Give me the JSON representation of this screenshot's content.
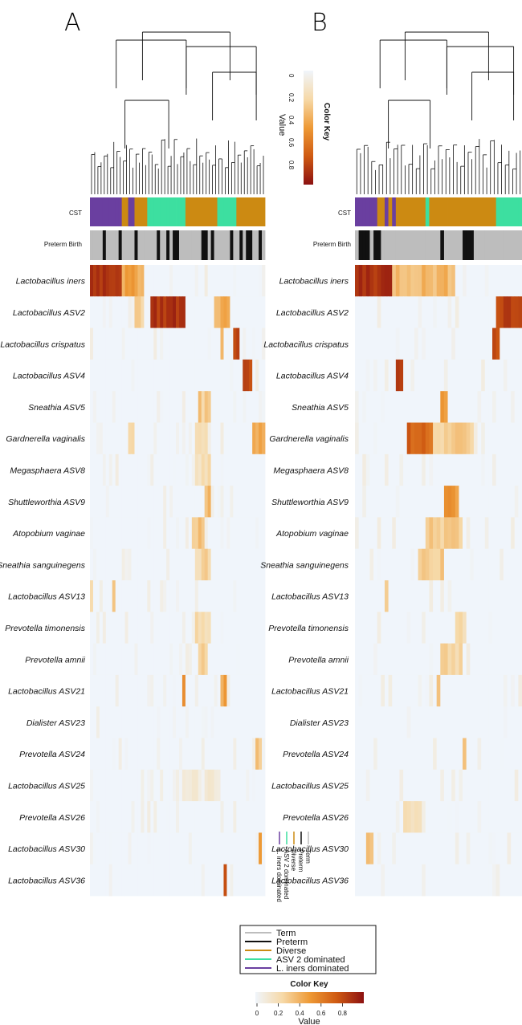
{
  "panels": [
    {
      "letter": "A"
    },
    {
      "letter": "B"
    }
  ],
  "bar_labels": {
    "cst": "CST",
    "preterm": "Preterm Birth"
  },
  "legend": {
    "items": [
      {
        "label": "Term",
        "color": "#bdbdbd"
      },
      {
        "label": "Preterm",
        "color": "#111111"
      },
      {
        "label": "Diverse",
        "color": "#cc8a12"
      },
      {
        "label": "ASV 2 dominated",
        "color": "#3ddfa0"
      },
      {
        "label": "L. iners dominated",
        "color": "#6a3fa0"
      }
    ]
  },
  "mini_legend": {
    "items": [
      "Term",
      "Preterm",
      "Diverse",
      "ASV 2 dominated",
      "L. iners dominated"
    ]
  },
  "color_key": {
    "title": "Color Key",
    "axis_label": "Value",
    "ticks": [
      "0",
      "0.2",
      "0.4",
      "0.6",
      "0.8"
    ],
    "range": [
      0,
      1
    ],
    "low_color": "#f0f5fb",
    "high_color": "#8c1111"
  },
  "chart_data": [
    {
      "type": "heatmap",
      "panel": "A",
      "rows": [
        "Lactobacillus iners",
        "Lactobacillus ASV2",
        "Lactobacillus crispatus",
        "Lactobacillus ASV4",
        "Sneathia ASV5",
        "Gardnerella vaginalis",
        "Megasphaera ASV8",
        "Shuttleworthia ASV9",
        "Atopobium vaginae",
        "Sneathia sanguinegens",
        "Lactobacillus ASV13",
        "Prevotella timonensis",
        "Prevotella amnii",
        "Lactobacillus ASV21",
        "Dialister ASV23",
        "Prevotella ASV24",
        "Lactobacillus ASV25",
        "Prevotella ASV26",
        "Lactobacillus ASV30",
        "Lactobacillus ASV36"
      ],
      "n_samples": 55,
      "cst": [
        "L",
        "L",
        "L",
        "L",
        "L",
        "L",
        "L",
        "L",
        "L",
        "L",
        "D",
        "D",
        "L",
        "L",
        "D",
        "D",
        "D",
        "D",
        "A",
        "A",
        "A",
        "A",
        "A",
        "A",
        "A",
        "A",
        "A",
        "A",
        "A",
        "A",
        "D",
        "D",
        "D",
        "D",
        "D",
        "D",
        "D",
        "D",
        "D",
        "D",
        "A",
        "A",
        "A",
        "A",
        "A",
        "A",
        "D",
        "D",
        "D",
        "D",
        "D",
        "D",
        "D",
        "D",
        "D"
      ],
      "preterm_index": [
        4,
        9,
        14,
        21,
        24,
        26,
        27,
        35,
        36,
        38,
        44,
        47,
        49,
        50,
        53
      ],
      "blocks": [
        {
          "row": 0,
          "from": 0,
          "to": 9,
          "value": 0.9
        },
        {
          "row": 0,
          "from": 10,
          "to": 16,
          "value": 0.45
        },
        {
          "row": 1,
          "from": 14,
          "to": 16,
          "value": 0.3
        },
        {
          "row": 1,
          "from": 19,
          "to": 29,
          "value": 0.88
        },
        {
          "row": 1,
          "from": 39,
          "to": 43,
          "value": 0.42
        },
        {
          "row": 2,
          "from": 45,
          "to": 46,
          "value": 0.8
        },
        {
          "row": 2,
          "from": 41,
          "to": 41,
          "value": 0.4
        },
        {
          "row": 3,
          "from": 48,
          "to": 50,
          "value": 0.85
        },
        {
          "row": 4,
          "from": 34,
          "to": 37,
          "value": 0.3
        },
        {
          "row": 5,
          "from": 12,
          "to": 13,
          "value": 0.3
        },
        {
          "row": 5,
          "from": 51,
          "to": 54,
          "value": 0.45
        },
        {
          "row": 5,
          "from": 33,
          "to": 36,
          "value": 0.22
        },
        {
          "row": 6,
          "from": 33,
          "to": 37,
          "value": 0.22
        },
        {
          "row": 7,
          "from": 36,
          "to": 37,
          "value": 0.35
        },
        {
          "row": 8,
          "from": 32,
          "to": 35,
          "value": 0.35
        },
        {
          "row": 9,
          "from": 33,
          "to": 37,
          "value": 0.25
        },
        {
          "row": 10,
          "from": 0,
          "to": 0,
          "value": 0.3
        },
        {
          "row": 10,
          "from": 7,
          "to": 7,
          "value": 0.4
        },
        {
          "row": 11,
          "from": 33,
          "to": 37,
          "value": 0.2
        },
        {
          "row": 12,
          "from": 34,
          "to": 36,
          "value": 0.25
        },
        {
          "row": 13,
          "from": 29,
          "to": 29,
          "value": 0.5
        },
        {
          "row": 13,
          "from": 41,
          "to": 42,
          "value": 0.45
        },
        {
          "row": 15,
          "from": 52,
          "to": 53,
          "value": 0.3
        },
        {
          "row": 16,
          "from": 26,
          "to": 40,
          "value": 0.08
        },
        {
          "row": 18,
          "from": 53,
          "to": 53,
          "value": 0.5
        },
        {
          "row": 19,
          "from": 42,
          "to": 42,
          "value": 0.75
        }
      ]
    },
    {
      "type": "heatmap",
      "panel": "B",
      "rows": [
        "Lactobacillus iners",
        "Lactobacillus ASV2",
        "Lactobacillus crispatus",
        "Lactobacillus ASV4",
        "Sneathia ASV5",
        "Gardnerella vaginalis",
        "Megasphaera ASV8",
        "Shuttleworthia ASV9",
        "Atopobium vaginae",
        "Sneathia sanguinegens",
        "Lactobacillus ASV13",
        "Prevotella timonensis",
        "Prevotella amnii",
        "Lactobacillus ASV21",
        "Dialister ASV23",
        "Prevotella ASV24",
        "Lactobacillus ASV25",
        "Prevotella ASV26",
        "Lactobacillus ASV30",
        "Lactobacillus ASV36"
      ],
      "n_samples": 45,
      "cst": [
        "L",
        "L",
        "L",
        "L",
        "L",
        "L",
        "D",
        "D",
        "L",
        "D",
        "L",
        "D",
        "D",
        "D",
        "D",
        "D",
        "D",
        "D",
        "D",
        "A",
        "D",
        "D",
        "D",
        "D",
        "D",
        "D",
        "D",
        "D",
        "D",
        "D",
        "D",
        "D",
        "D",
        "D",
        "D",
        "D",
        "D",
        "D",
        "A",
        "A",
        "A",
        "A",
        "A",
        "A",
        "A"
      ],
      "preterm_index": [
        1,
        2,
        3,
        5,
        6,
        23,
        29,
        30,
        31
      ],
      "blocks": [
        {
          "row": 0,
          "from": 0,
          "to": 9,
          "value": 0.9
        },
        {
          "row": 0,
          "from": 10,
          "to": 26,
          "value": 0.38
        },
        {
          "row": 1,
          "from": 38,
          "to": 44,
          "value": 0.85
        },
        {
          "row": 2,
          "from": 37,
          "to": 38,
          "value": 0.78
        },
        {
          "row": 3,
          "from": 11,
          "to": 12,
          "value": 0.88
        },
        {
          "row": 4,
          "from": 23,
          "to": 24,
          "value": 0.5
        },
        {
          "row": 5,
          "from": 14,
          "to": 20,
          "value": 0.7
        },
        {
          "row": 5,
          "from": 20,
          "to": 31,
          "value": 0.3
        },
        {
          "row": 7,
          "from": 24,
          "to": 27,
          "value": 0.5
        },
        {
          "row": 8,
          "from": 19,
          "to": 28,
          "value": 0.3
        },
        {
          "row": 9,
          "from": 17,
          "to": 23,
          "value": 0.3
        },
        {
          "row": 10,
          "from": 8,
          "to": 8,
          "value": 0.3
        },
        {
          "row": 11,
          "from": 27,
          "to": 29,
          "value": 0.25
        },
        {
          "row": 12,
          "from": 23,
          "to": 28,
          "value": 0.25
        },
        {
          "row": 13,
          "from": 22,
          "to": 22,
          "value": 0.35
        },
        {
          "row": 15,
          "from": 29,
          "to": 29,
          "value": 0.3
        },
        {
          "row": 17,
          "from": 13,
          "to": 17,
          "value": 0.2
        },
        {
          "row": 18,
          "from": 3,
          "to": 4,
          "value": 0.3
        }
      ]
    }
  ]
}
